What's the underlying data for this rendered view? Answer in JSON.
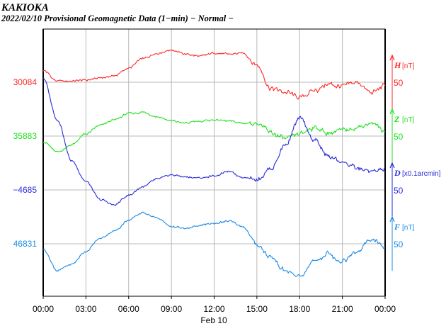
{
  "header": {
    "station": "KAKIOKA",
    "subtitle": "2022/02/10  Provisional Geomagnetic Data (1−min)  − Normal −"
  },
  "chart_data": {
    "type": "line",
    "xlabel": "Feb 10",
    "x_ticks": [
      "00:00",
      "03:00",
      "06:00",
      "09:00",
      "12:00",
      "15:00",
      "18:00",
      "21:00",
      "00:00"
    ],
    "x_hours": [
      0,
      1,
      2,
      3,
      4,
      5,
      6,
      7,
      8,
      9,
      10,
      11,
      12,
      13,
      14,
      15,
      16,
      17,
      18,
      19,
      20,
      21,
      22,
      23,
      24
    ],
    "series": [
      {
        "name": "H",
        "unit": "[nT]",
        "color": "#ff2a2a",
        "base_label": "30084",
        "scale_label": "50",
        "values": [
          30095,
          30085,
          30085,
          30086,
          30088,
          30090,
          30097,
          30106,
          30111,
          30114,
          30110,
          30108,
          30111,
          30110,
          30111,
          30100,
          30078,
          30075,
          30070,
          30076,
          30082,
          30080,
          30084,
          30074,
          30081
        ]
      },
      {
        "name": "Z",
        "unit": "[nT]",
        "color": "#22e022",
        "base_label": "35883",
        "scale_label": "50",
        "values": [
          35878,
          35868,
          35875,
          35885,
          35893,
          35898,
          35904,
          35905,
          35901,
          35897,
          35895,
          35897,
          35898,
          35897,
          35895,
          35895,
          35886,
          35880,
          35885,
          35891,
          35886,
          35888,
          35891,
          35895,
          35888
        ]
      },
      {
        "name": "D",
        "unit": "[x0.1arcmin]",
        "color": "#2a2ad8",
        "base_label": "−4685",
        "scale_label": "50",
        "values": [
          -4581,
          -4620,
          -4658,
          -4677,
          -4694,
          -4699,
          -4690,
          -4682,
          -4675,
          -4671,
          -4673,
          -4674,
          -4672,
          -4668,
          -4673,
          -4675,
          -4665,
          -4643,
          -4619,
          -4638,
          -4654,
          -4659,
          -4665,
          -4668,
          -4666
        ]
      },
      {
        "name": "F",
        "unit": "[nT]",
        "color": "#1a8ae6",
        "base_label": "46831",
        "scale_label": "50",
        "values": [
          46826,
          46806,
          46812,
          46824,
          46836,
          46843,
          46853,
          46860,
          46855,
          46847,
          46845,
          46848,
          46850,
          46852,
          46847,
          46830,
          46818,
          46806,
          46800,
          46815,
          46822,
          46815,
          46823,
          46835,
          46827
        ]
      }
    ]
  }
}
